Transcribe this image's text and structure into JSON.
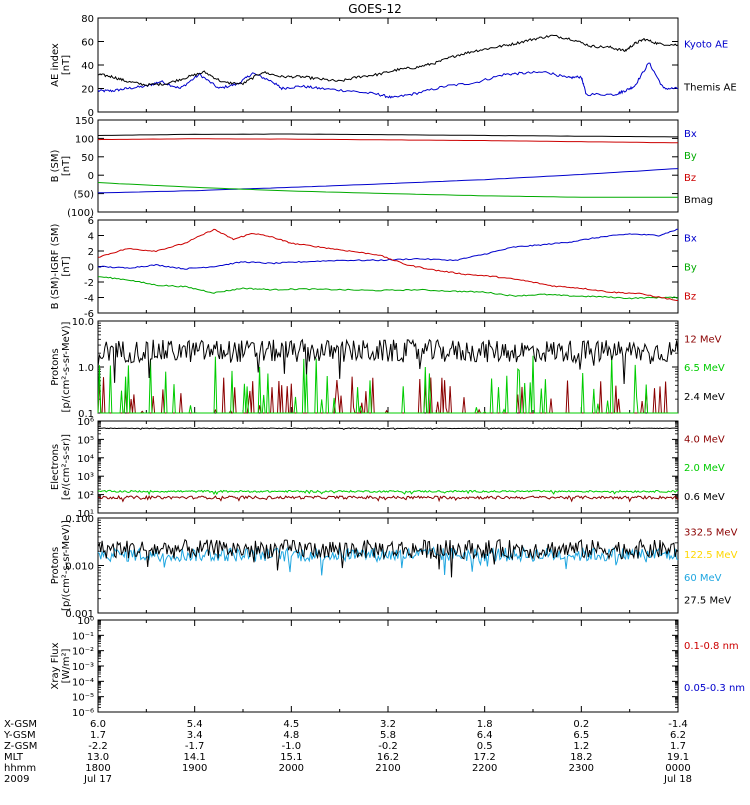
{
  "title": "GOES-12",
  "chart_data": [
    {
      "type": "line",
      "ylabel": "AE index\n[nT]",
      "ylim": [
        0,
        80
      ],
      "log": false,
      "ticks": [
        0,
        20,
        40,
        60,
        80
      ],
      "tick_labels": [
        "0",
        "20",
        "40",
        "60",
        "80"
      ],
      "zero_line": false,
      "series": [
        {
          "name": "Kyoto AE",
          "color": "#0000cc",
          "x": [
            0,
            0.15,
            0.3,
            0.5,
            0.65,
            0.85,
            1.05,
            1.25,
            1.45,
            1.6,
            1.8,
            1.9,
            2.1,
            2.3,
            2.6,
            2.9,
            3.05,
            3.3,
            3.6,
            3.9,
            4.2,
            4.4,
            4.65,
            4.85,
            5.0,
            5.05,
            5.35,
            5.45,
            5.55,
            5.7,
            5.85,
            6.0
          ],
          "y": [
            18,
            18,
            20,
            22,
            26,
            20,
            32,
            20,
            24,
            33,
            26,
            20,
            22,
            20,
            18,
            15,
            12,
            16,
            22,
            25,
            32,
            33,
            34,
            29,
            30,
            15,
            15,
            18,
            22,
            42,
            20,
            20
          ]
        },
        {
          "name": "Themis AE",
          "color": "#000000",
          "x": [
            0,
            0.15,
            0.3,
            0.5,
            0.7,
            0.9,
            1.1,
            1.3,
            1.5,
            1.7,
            1.9,
            2.1,
            2.3,
            2.5,
            2.7,
            2.9,
            3.1,
            3.3,
            3.5,
            3.7,
            3.9,
            4.1,
            4.3,
            4.5,
            4.7,
            4.9,
            5.1,
            5.3,
            5.45,
            5.55,
            5.65,
            5.8,
            6.0
          ],
          "y": [
            32,
            30,
            26,
            23,
            24,
            29,
            34,
            25,
            24,
            34,
            30,
            30,
            28,
            26,
            30,
            32,
            36,
            38,
            42,
            48,
            52,
            55,
            58,
            62,
            65,
            62,
            56,
            55,
            52,
            58,
            62,
            58,
            57
          ]
        }
      ],
      "legend": [
        "Kyoto AE",
        "Themis AE"
      ]
    },
    {
      "type": "line",
      "ylabel": "B (SM)\n[nT]",
      "ylim": [
        -100,
        150
      ],
      "log": false,
      "ticks": [
        -100,
        -50,
        0,
        50,
        100,
        150
      ],
      "tick_labels": [
        "(100)",
        "(50)",
        "0",
        "50",
        "100",
        "150"
      ],
      "zero_line": false,
      "series": [
        {
          "name": "Bx",
          "color": "#0000cc",
          "x": [
            0,
            1,
            2,
            3,
            4,
            5,
            6
          ],
          "y": [
            -48,
            -42,
            -33,
            -23,
            -12,
            2,
            18
          ]
        },
        {
          "name": "By",
          "color": "#00aa00",
          "x": [
            0,
            1,
            2,
            3,
            4,
            5,
            6
          ],
          "y": [
            -20,
            -33,
            -43,
            -50,
            -56,
            -60,
            -60
          ]
        },
        {
          "name": "Bz",
          "color": "#cc0000",
          "x": [
            0,
            1,
            2,
            3,
            4,
            5,
            6
          ],
          "y": [
            97,
            99,
            98,
            96,
            94,
            91,
            88
          ]
        },
        {
          "name": "Bmag",
          "color": "#000000",
          "x": [
            0,
            1,
            2,
            3,
            4,
            5,
            6
          ],
          "y": [
            108,
            111,
            112,
            110,
            108,
            106,
            104
          ]
        }
      ],
      "legend": [
        "Bx",
        "By",
        "Bz",
        "Bmag"
      ]
    },
    {
      "type": "line",
      "ylabel": "B (SM)-IGRF (SM)\n[nT]",
      "ylim": [
        -6,
        6
      ],
      "log": false,
      "ticks": [
        -6,
        -4,
        -2,
        0,
        2,
        4,
        6
      ],
      "tick_labels": [
        "-6",
        "-4",
        "-2",
        "0",
        "2",
        "4",
        "6"
      ],
      "zero_line": false,
      "series": [
        {
          "name": "Bx",
          "color": "#0000cc",
          "x": [
            0,
            0.3,
            0.6,
            0.9,
            1.2,
            1.5,
            1.8,
            2.1,
            2.5,
            2.9,
            3.3,
            3.7,
            4.0,
            4.3,
            4.6,
            4.9,
            5.2,
            5.5,
            5.8,
            6.0
          ],
          "y": [
            0,
            -0.2,
            0.2,
            -0.3,
            0,
            0.6,
            0.4,
            0.6,
            0.8,
            0.8,
            1.0,
            0.8,
            1.6,
            2.5,
            2.8,
            3.2,
            3.8,
            4.2,
            4.0,
            4.8
          ]
        },
        {
          "name": "By",
          "color": "#00aa00",
          "x": [
            0,
            0.3,
            0.6,
            0.9,
            1.2,
            1.5,
            1.8,
            2.1,
            2.5,
            2.9,
            3.3,
            3.7,
            4.0,
            4.3,
            4.6,
            4.9,
            5.2,
            5.5,
            5.8,
            6.0
          ],
          "y": [
            -1.3,
            -1.7,
            -2.4,
            -2.6,
            -3.4,
            -2.8,
            -3.0,
            -2.9,
            -3.0,
            -3.1,
            -3.0,
            -3.2,
            -3.3,
            -3.8,
            -3.6,
            -3.8,
            -3.9,
            -4.1,
            -4.0,
            -4.0
          ]
        },
        {
          "name": "Bz",
          "color": "#cc0000",
          "x": [
            0,
            0.3,
            0.6,
            0.9,
            1.2,
            1.4,
            1.6,
            1.8,
            2.0,
            2.3,
            2.6,
            2.9,
            3.2,
            3.5,
            3.8,
            4.1,
            4.4,
            4.7,
            5.0,
            5.3,
            5.6,
            6.0
          ],
          "y": [
            1.2,
            2.3,
            2.0,
            3.0,
            4.8,
            3.5,
            4.3,
            3.8,
            3.0,
            2.5,
            2.0,
            1.5,
            0.2,
            -0.5,
            -1.0,
            -1.3,
            -1.8,
            -2.5,
            -2.8,
            -3.3,
            -3.5,
            -4.4
          ]
        }
      ],
      "legend": [
        "Bx",
        "By",
        "Bz"
      ]
    },
    {
      "type": "line",
      "ylabel": "Protons\n[p/(cm²-s-sr-MeV)]",
      "ylim": [
        0.1,
        10
      ],
      "log": true,
      "ticks": [
        0.1,
        1,
        10
      ],
      "tick_labels": [
        "0.1",
        "1.0",
        "10.0"
      ],
      "zero_line": false,
      "series": [
        {
          "name": "12 MeV",
          "color": "#8b0000",
          "level": 0.1,
          "spread": 0.5
        },
        {
          "name": "6.5 MeV",
          "color": "#00cc00",
          "level": 0.1,
          "spread": 0.8
        },
        {
          "name": "2.4 MeV",
          "color": "#000000",
          "level": 2.2,
          "spread": 0.25
        }
      ],
      "legend": [
        "12 MeV",
        "6.5 MeV",
        "2.4 MeV"
      ]
    },
    {
      "type": "line",
      "ylabel": "Electrons\n[e/(cm²-s-sr)]",
      "ylim": [
        10,
        1000000
      ],
      "log": true,
      "ticks": [
        10,
        100,
        1000,
        10000,
        100000,
        1000000
      ],
      "tick_labels": [
        "10¹",
        "10²",
        "10³",
        "10⁴",
        "10⁵",
        "10⁶"
      ],
      "zero_line": false,
      "series": [
        {
          "name": "4.0 MeV",
          "color": "#8b0000",
          "level": 70,
          "spread": 0.08
        },
        {
          "name": "2.0 MeV",
          "color": "#00cc00",
          "level": 150,
          "spread": 0.05
        },
        {
          "name": "0.6 MeV",
          "color": "#000000",
          "level": 400000,
          "spread": 0.02
        }
      ],
      "legend": [
        "4.0 MeV",
        "2.0 MeV",
        "0.6 MeV"
      ]
    },
    {
      "type": "line",
      "ylabel": "Protons\n[p/(cm²-s-sr-MeV)]",
      "ylim": [
        0.001,
        0.1
      ],
      "log": true,
      "ticks": [
        0.001,
        0.01,
        0.1
      ],
      "tick_labels": [
        "0.001",
        "0.010",
        "0.100"
      ],
      "zero_line": false,
      "series": [
        {
          "name": "332.5 MeV",
          "color": "#8b0000",
          "level": 0,
          "spread": 0
        },
        {
          "name": "122.5 MeV",
          "color": "#ffd700",
          "level": 0,
          "spread": 0
        },
        {
          "name": "60 MeV",
          "color": "#1fa6e0",
          "level": 0.017,
          "spread": 0.15
        },
        {
          "name": "27.5 MeV",
          "color": "#000000",
          "level": 0.022,
          "spread": 0.2
        }
      ],
      "legend": [
        "332.5 MeV",
        "122.5 MeV",
        "60 MeV",
        "27.5 MeV"
      ]
    },
    {
      "type": "line",
      "ylabel": "Xray Flux\n[W/m²]",
      "ylim": [
        1e-06,
        1
      ],
      "log": true,
      "ticks": [
        1e-06,
        1e-05,
        0.0001,
        0.001,
        0.01,
        0.1,
        1
      ],
      "tick_labels": [
        "10⁻⁶",
        "10⁻⁵",
        "10⁻⁴",
        "10⁻³",
        "10⁻²",
        "10⁻¹",
        "10⁰"
      ],
      "zero_line": false,
      "series": [
        {
          "name": "0.1-0.8 nm",
          "color": "#cc0000"
        },
        {
          "name": "0.05-0.3 nm",
          "color": "#0000cc"
        }
      ],
      "legend": [
        "0.1-0.8 nm",
        "0.05-0.3 nm"
      ]
    }
  ],
  "x_axis": {
    "xlim": [
      0,
      6
    ],
    "ticks": [
      0,
      1,
      2,
      3,
      4,
      5,
      6
    ],
    "rows": [
      {
        "label": "X-GSM",
        "values": [
          "6.0",
          "5.4",
          "4.5",
          "3.2",
          "1.8",
          "0.2",
          "-1.4"
        ]
      },
      {
        "label": "Y-GSM",
        "values": [
          "1.7",
          "3.4",
          "4.8",
          "5.8",
          "6.4",
          "6.5",
          "6.2"
        ]
      },
      {
        "label": "Z-GSM",
        "values": [
          "-2.2",
          "-1.7",
          "-1.0",
          "-0.2",
          "0.5",
          "1.2",
          "1.7"
        ]
      },
      {
        "label": "MLT",
        "values": [
          "13.0",
          "14.1",
          "15.1",
          "16.2",
          "17.2",
          "18.2",
          "19.1"
        ]
      },
      {
        "label": "hhmm",
        "values": [
          "1800",
          "1900",
          "2000",
          "2100",
          "2200",
          "2300",
          "0000"
        ]
      },
      {
        "label": "2009",
        "values": [
          "Jul 17",
          "",
          "",
          "",
          "",
          "",
          "Jul 18"
        ]
      }
    ]
  }
}
